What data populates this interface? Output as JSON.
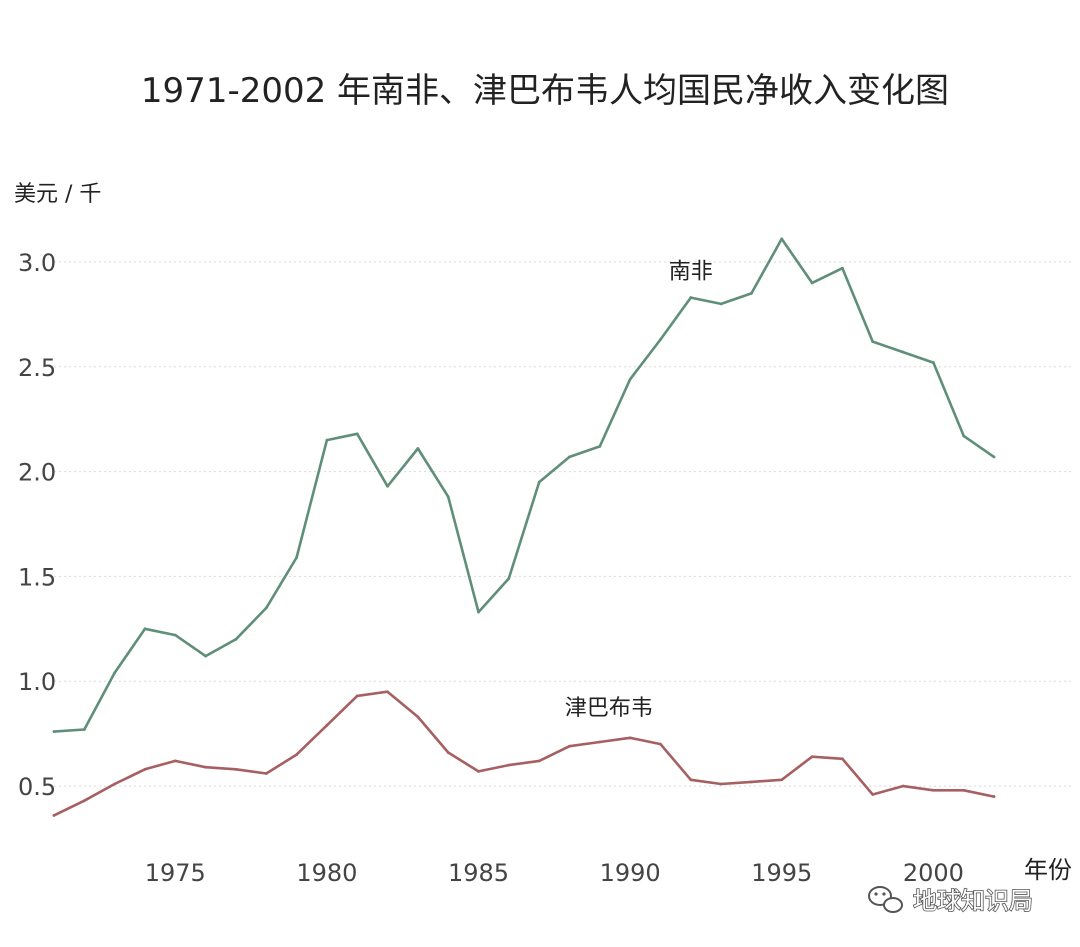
{
  "chart_data": {
    "type": "line",
    "title": "1971-2002 年南非、津巴布韦人均国民净收入变化图",
    "ylabel": "美元 / 千",
    "xlabel": "年份",
    "ylim": [
      0.3,
      3.2
    ],
    "xlim": [
      1971,
      2002
    ],
    "yticks": [
      0.5,
      1.0,
      1.5,
      2.0,
      2.5,
      3.0
    ],
    "ytick_labels": [
      "0.5",
      "1.0",
      "1.5",
      "2.0",
      "2.5",
      "3.0"
    ],
    "xticks": [
      1975,
      1980,
      1985,
      1990,
      1995,
      2000
    ],
    "xtick_labels": [
      "1975",
      "1980",
      "1985",
      "1990",
      "1995",
      "2000"
    ],
    "grid": true,
    "legend": "inline labels",
    "x": [
      1971,
      1972,
      1973,
      1974,
      1975,
      1976,
      1977,
      1978,
      1979,
      1980,
      1981,
      1982,
      1983,
      1984,
      1985,
      1986,
      1987,
      1988,
      1989,
      1990,
      1991,
      1992,
      1993,
      1994,
      1995,
      1996,
      1997,
      1998,
      1999,
      2000,
      2001,
      2002
    ],
    "series": [
      {
        "name": "南非",
        "color": "#5f8f78",
        "label_at": {
          "x": 1992,
          "y": 2.92
        },
        "values": [
          0.76,
          0.77,
          1.04,
          1.25,
          1.22,
          1.12,
          1.2,
          1.35,
          1.59,
          2.15,
          2.18,
          1.93,
          2.11,
          1.88,
          1.33,
          1.49,
          1.95,
          2.07,
          2.12,
          2.44,
          2.63,
          2.83,
          2.8,
          2.85,
          3.11,
          2.9,
          2.97,
          2.62,
          2.57,
          2.52,
          2.17,
          2.07
        ]
      },
      {
        "name": "津巴布韦",
        "color": "#a66062",
        "label_at": {
          "x": 1989.3,
          "y": 0.84
        },
        "values": [
          0.36,
          0.43,
          0.51,
          0.58,
          0.62,
          0.59,
          0.58,
          0.56,
          0.65,
          0.79,
          0.93,
          0.95,
          0.83,
          0.66,
          0.57,
          0.6,
          0.62,
          0.69,
          0.71,
          0.73,
          0.7,
          0.53,
          0.51,
          0.52,
          0.53,
          0.64,
          0.63,
          0.46,
          0.5,
          0.48,
          0.48,
          0.45
        ]
      }
    ]
  },
  "watermark": {
    "icon": "wechat-icon",
    "text": "地球知识局"
  }
}
